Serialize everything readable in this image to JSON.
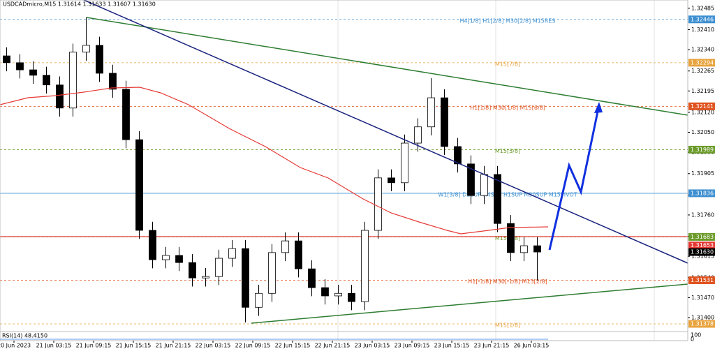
{
  "chart_data": {
    "type": "candlestick",
    "title": "USDCADmicro,M15  1.31614 1.31633 1.31607 1.31630",
    "ylim": [
      1.31351,
      1.32514
    ],
    "yticks": [
      {
        "value": 1.32485,
        "label": "1.32485"
      },
      {
        "value": 1.3241,
        "label": "1.32410"
      },
      {
        "value": 1.3234,
        "label": "1.32340"
      },
      {
        "value": 1.32265,
        "label": "1.32265"
      },
      {
        "value": 1.32195,
        "label": "1.32195"
      },
      {
        "value": 1.3212,
        "label": "1.32120"
      },
      {
        "value": 1.3205,
        "label": "1.32050"
      },
      {
        "value": 1.3198,
        "label": "1.31980"
      },
      {
        "value": 1.31905,
        "label": "1.31905"
      },
      {
        "value": 1.3183,
        "label": "1.31830"
      },
      {
        "value": 1.3176,
        "label": "1.31760"
      },
      {
        "value": 1.31685,
        "label": "1.31685"
      },
      {
        "value": 1.31615,
        "label": "1.31615"
      },
      {
        "value": 1.3154,
        "label": "1.31540"
      },
      {
        "value": 1.3147,
        "label": "1.31470"
      },
      {
        "value": 1.314,
        "label": "1.31400"
      }
    ],
    "time_labels": [
      "20 Jun 2023",
      "21 Jun 03:15",
      "21 Jun 09:15",
      "21 Jun 15:15",
      "21 Jun 21:15",
      "22 Jun 03:15",
      "22 Jun 09:15",
      "22 Jun 15:15",
      "22 Jun 21:15",
      "23 Jun 03:15",
      "23 Jun 09:15",
      "23 Jun 15:15",
      "23 Jun 21:15",
      "26 Jun 03:15"
    ],
    "open": [
      1.32318,
      1.32294,
      1.32269,
      1.3225,
      1.32216,
      1.32135,
      1.32331,
      1.32355,
      1.32257,
      1.32201,
      1.32024,
      1.31706,
      1.31603,
      1.31618,
      1.31593,
      1.31539,
      1.31544,
      1.31608,
      1.31642,
      1.31436,
      1.31485,
      1.31628,
      1.31669,
      1.31571,
      1.31505,
      1.31476,
      1.31485,
      1.31456,
      1.31706,
      1.3189,
      1.31873,
      1.32012,
      1.32069,
      1.32171,
      1.32,
      1.31939,
      1.31828,
      1.31902,
      1.3173,
      1.31628,
      1.31652
    ],
    "high": [
      1.32348,
      1.32324,
      1.32299,
      1.3228,
      1.32246,
      1.32361,
      1.32453,
      1.32385,
      1.32287,
      1.32231,
      1.32054,
      1.31736,
      1.31648,
      1.31648,
      1.31623,
      1.31574,
      1.31638,
      1.31672,
      1.31672,
      1.31515,
      1.31658,
      1.31699,
      1.31699,
      1.31601,
      1.31535,
      1.31515,
      1.31515,
      1.31736,
      1.3192,
      1.3192,
      1.32042,
      1.32099,
      1.3224,
      1.32201,
      1.3203,
      1.31969,
      1.31932,
      1.31932,
      1.3176,
      1.31682,
      1.31682
    ],
    "low": [
      1.32264,
      1.32239,
      1.3222,
      1.32186,
      1.32105,
      1.32105,
      1.32301,
      1.32227,
      1.32171,
      1.31994,
      1.31676,
      1.31573,
      1.31573,
      1.31563,
      1.31509,
      1.31509,
      1.31514,
      1.31578,
      1.31383,
      1.31406,
      1.31455,
      1.31598,
      1.31541,
      1.31475,
      1.31446,
      1.31446,
      1.31426,
      1.31426,
      1.31676,
      1.31843,
      1.31843,
      1.31982,
      1.32039,
      1.3197,
      1.31909,
      1.31798,
      1.31798,
      1.317,
      1.31598,
      1.31598,
      1.3153
    ],
    "close": [
      1.32294,
      1.32269,
      1.3225,
      1.32216,
      1.32135,
      1.32331,
      1.32355,
      1.32257,
      1.32201,
      1.32024,
      1.31706,
      1.31603,
      1.31618,
      1.31593,
      1.31539,
      1.31544,
      1.31608,
      1.31642,
      1.31436,
      1.31485,
      1.31628,
      1.31669,
      1.31571,
      1.31505,
      1.31476,
      1.31485,
      1.31456,
      1.31706,
      1.3189,
      1.31873,
      1.32012,
      1.32069,
      1.32171,
      1.32,
      1.31939,
      1.31828,
      1.31902,
      1.3173,
      1.31628,
      1.31652,
      1.3163
    ],
    "levels": [
      {
        "value": 1.32446,
        "label": "1.32446",
        "name": "H4[1/8] H1[2/8] M30[2/8] M15RES",
        "color": "#3d8fd1",
        "style": "dashed"
      },
      {
        "value": 1.32294,
        "label": "1.32294",
        "name": "M15[7/8]",
        "color": "#e8a33d",
        "style": "dashed"
      },
      {
        "value": 1.32141,
        "label": "1.32141",
        "name": "H1[1/8] M30[1/8] M15[6/8]",
        "color": "#e0531f",
        "style": "dashed"
      },
      {
        "value": 1.31989,
        "label": "1.31989",
        "name": "M15[5/8]",
        "color": "#6b9b2a",
        "style": "dashed"
      },
      {
        "value": 1.31836,
        "label": "1.31836",
        "name": "W1[3/8] D1SUP H4SUP H1SUP M30SUP M15PIVOT",
        "color": "#3d8fd1",
        "style": "solid"
      },
      {
        "value": 1.31683,
        "label": "1.31683",
        "name": "M15[3/8]",
        "color": "#6b9b2a",
        "style": "dashed"
      },
      {
        "value": 1.31653,
        "label": "1.31653",
        "color": "#e53935",
        "style": "none"
      },
      {
        "value": 1.3163,
        "label": "1.31630",
        "color": "#000000",
        "style": "none"
      },
      {
        "value": 1.31531,
        "label": "1.31531",
        "name": "H1[-1/8] M30[-1/8] M15[2/8]",
        "color": "#e0531f",
        "style": "dashed"
      },
      {
        "value": 1.31378,
        "label": "1.31378",
        "name": "M15[1/8]",
        "color": "#e8a33d",
        "style": "dashed"
      }
    ],
    "rsi_label": "RSI(14) 48.4150",
    "rsi_ticks": [
      "100",
      "0"
    ],
    "bull_color": "#ffffff",
    "bear_color": "#000000"
  }
}
